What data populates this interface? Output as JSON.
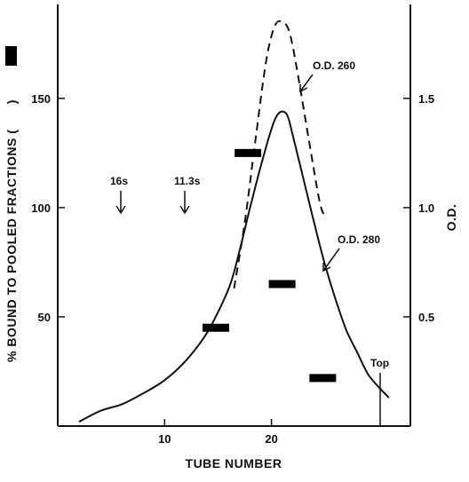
{
  "chart_data": {
    "type": "line",
    "xlabel": "TUBE NUMBER",
    "ylabel_left": "% BOUND TO POOLED FRACTIONS (",
    "ylabel_right": "O.D.",
    "xlim": [
      0,
      33
    ],
    "ylim_left": [
      0,
      193
    ],
    "ylim_right": [
      0,
      1.93
    ],
    "x_ticks": [
      10,
      20
    ],
    "y_ticks_left": [
      50,
      100,
      150
    ],
    "y_ticks_right": [
      "0.5",
      "1.0",
      "1.5"
    ],
    "series": [
      {
        "name": "O.D. 260",
        "style": "dashed",
        "axis": "right",
        "points": [
          [
            16.5,
            0.63
          ],
          [
            17.5,
            0.93
          ],
          [
            18.5,
            1.31
          ],
          [
            19.5,
            1.67
          ],
          [
            20.3,
            1.83
          ],
          [
            21,
            1.85
          ],
          [
            21.7,
            1.8
          ],
          [
            22.5,
            1.6
          ],
          [
            23.5,
            1.31
          ],
          [
            24.5,
            1.03
          ],
          [
            25,
            0.96
          ]
        ]
      },
      {
        "name": "O.D. 280",
        "style": "solid",
        "axis": "right",
        "points": [
          [
            2,
            0.02
          ],
          [
            4,
            0.07
          ],
          [
            6,
            0.1
          ],
          [
            8,
            0.15
          ],
          [
            10,
            0.21
          ],
          [
            12,
            0.3
          ],
          [
            14,
            0.43
          ],
          [
            16,
            0.63
          ],
          [
            17,
            0.8
          ],
          [
            18,
            1.0
          ],
          [
            19,
            1.19
          ],
          [
            20,
            1.36
          ],
          [
            20.5,
            1.42
          ],
          [
            21,
            1.44
          ],
          [
            21.5,
            1.42
          ],
          [
            22,
            1.33
          ],
          [
            23,
            1.13
          ],
          [
            24,
            0.93
          ],
          [
            25,
            0.74
          ],
          [
            26,
            0.58
          ],
          [
            27,
            0.44
          ],
          [
            28,
            0.34
          ],
          [
            29,
            0.24
          ],
          [
            30,
            0.18
          ],
          [
            31,
            0.13
          ]
        ]
      }
    ],
    "pooled_fractions": [
      {
        "x": 14.8,
        "value": 45
      },
      {
        "x": 17.8,
        "value": 125
      },
      {
        "x": 21,
        "value": 65
      },
      {
        "x": 24.8,
        "value": 22
      }
    ],
    "annotations": [
      {
        "text": "16s",
        "x": 7.3,
        "arrow_to_y": 95
      },
      {
        "text": "11.3s",
        "x": 12.7,
        "arrow_to_y": 95
      },
      {
        "text": "O.D. 260",
        "x": 28
      },
      {
        "text": "O.D. 280",
        "x": 28
      },
      {
        "text": "Top",
        "x": 31
      }
    ]
  }
}
